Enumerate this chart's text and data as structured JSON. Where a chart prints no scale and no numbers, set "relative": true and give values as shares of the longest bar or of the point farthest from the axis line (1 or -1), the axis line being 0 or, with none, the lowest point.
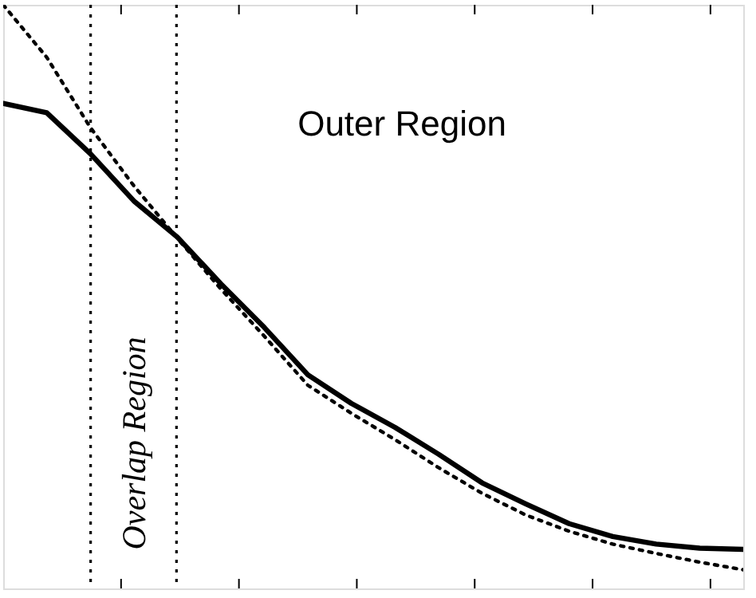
{
  "chart_data": {
    "type": "line",
    "relative": true,
    "categories": [
      null,
      null,
      null,
      null,
      null,
      null,
      null,
      null,
      null,
      null,
      null,
      null,
      null,
      null,
      null,
      null,
      null,
      null
    ],
    "series": [
      {
        "color": "#000000",
        "line_style": "solid",
        "values": [
          0.831,
          0.815,
          0.745,
          0.664,
          0.602,
          0.522,
          0.447,
          0.366,
          0.317,
          0.276,
          0.23,
          0.181,
          0.145,
          0.111,
          0.089,
          0.076,
          0.069,
          0.067
        ]
      },
      {
        "color": "#000000",
        "line_style": "dotted",
        "values": [
          1,
          0.91,
          0.79,
          0.69,
          0.6,
          0.513,
          0.432,
          0.348,
          0.3,
          0.255,
          0.207,
          0.163,
          0.126,
          0.098,
          0.076,
          0.06,
          0.045,
          0.032
        ]
      }
    ],
    "annotations": [
      "Outer Region",
      "Overlap Region"
    ]
  }
}
